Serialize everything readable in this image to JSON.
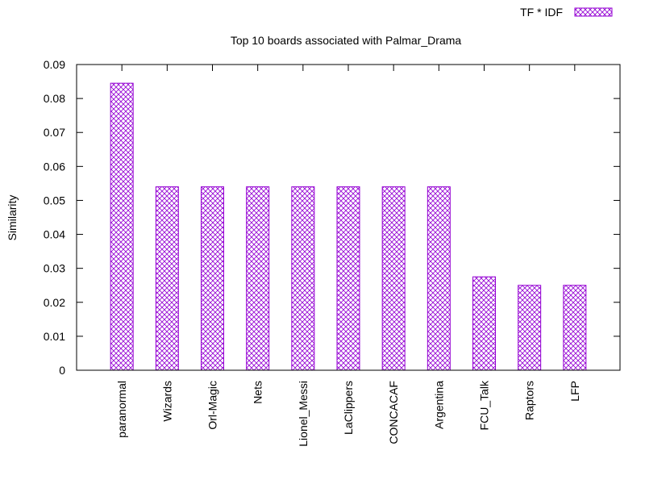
{
  "chart_data": {
    "type": "bar",
    "title": "Top 10 boards associated with Palmar_Drama",
    "xlabel": "",
    "ylabel": "Similarity",
    "ylim": [
      0,
      0.09
    ],
    "yticks": [
      "0",
      "0.01",
      "0.02",
      "0.03",
      "0.04",
      "0.05",
      "0.06",
      "0.07",
      "0.08",
      "0.09"
    ],
    "grid": false,
    "legend_position": "top-right",
    "categories": [
      "paranormal",
      "Wizards",
      "Orl-Magic",
      "Nets",
      "Lionel_Messi",
      "LaClippers",
      "CONCACAF",
      "Argentina",
      "FCU_Talk",
      "Raptors",
      "LFP"
    ],
    "series": [
      {
        "name": "TF * IDF",
        "color": "#9400d3",
        "fill": "crosshatch",
        "values": [
          0.0845,
          0.054,
          0.054,
          0.054,
          0.054,
          0.054,
          0.054,
          0.054,
          0.0275,
          0.025,
          0.025
        ]
      }
    ]
  }
}
